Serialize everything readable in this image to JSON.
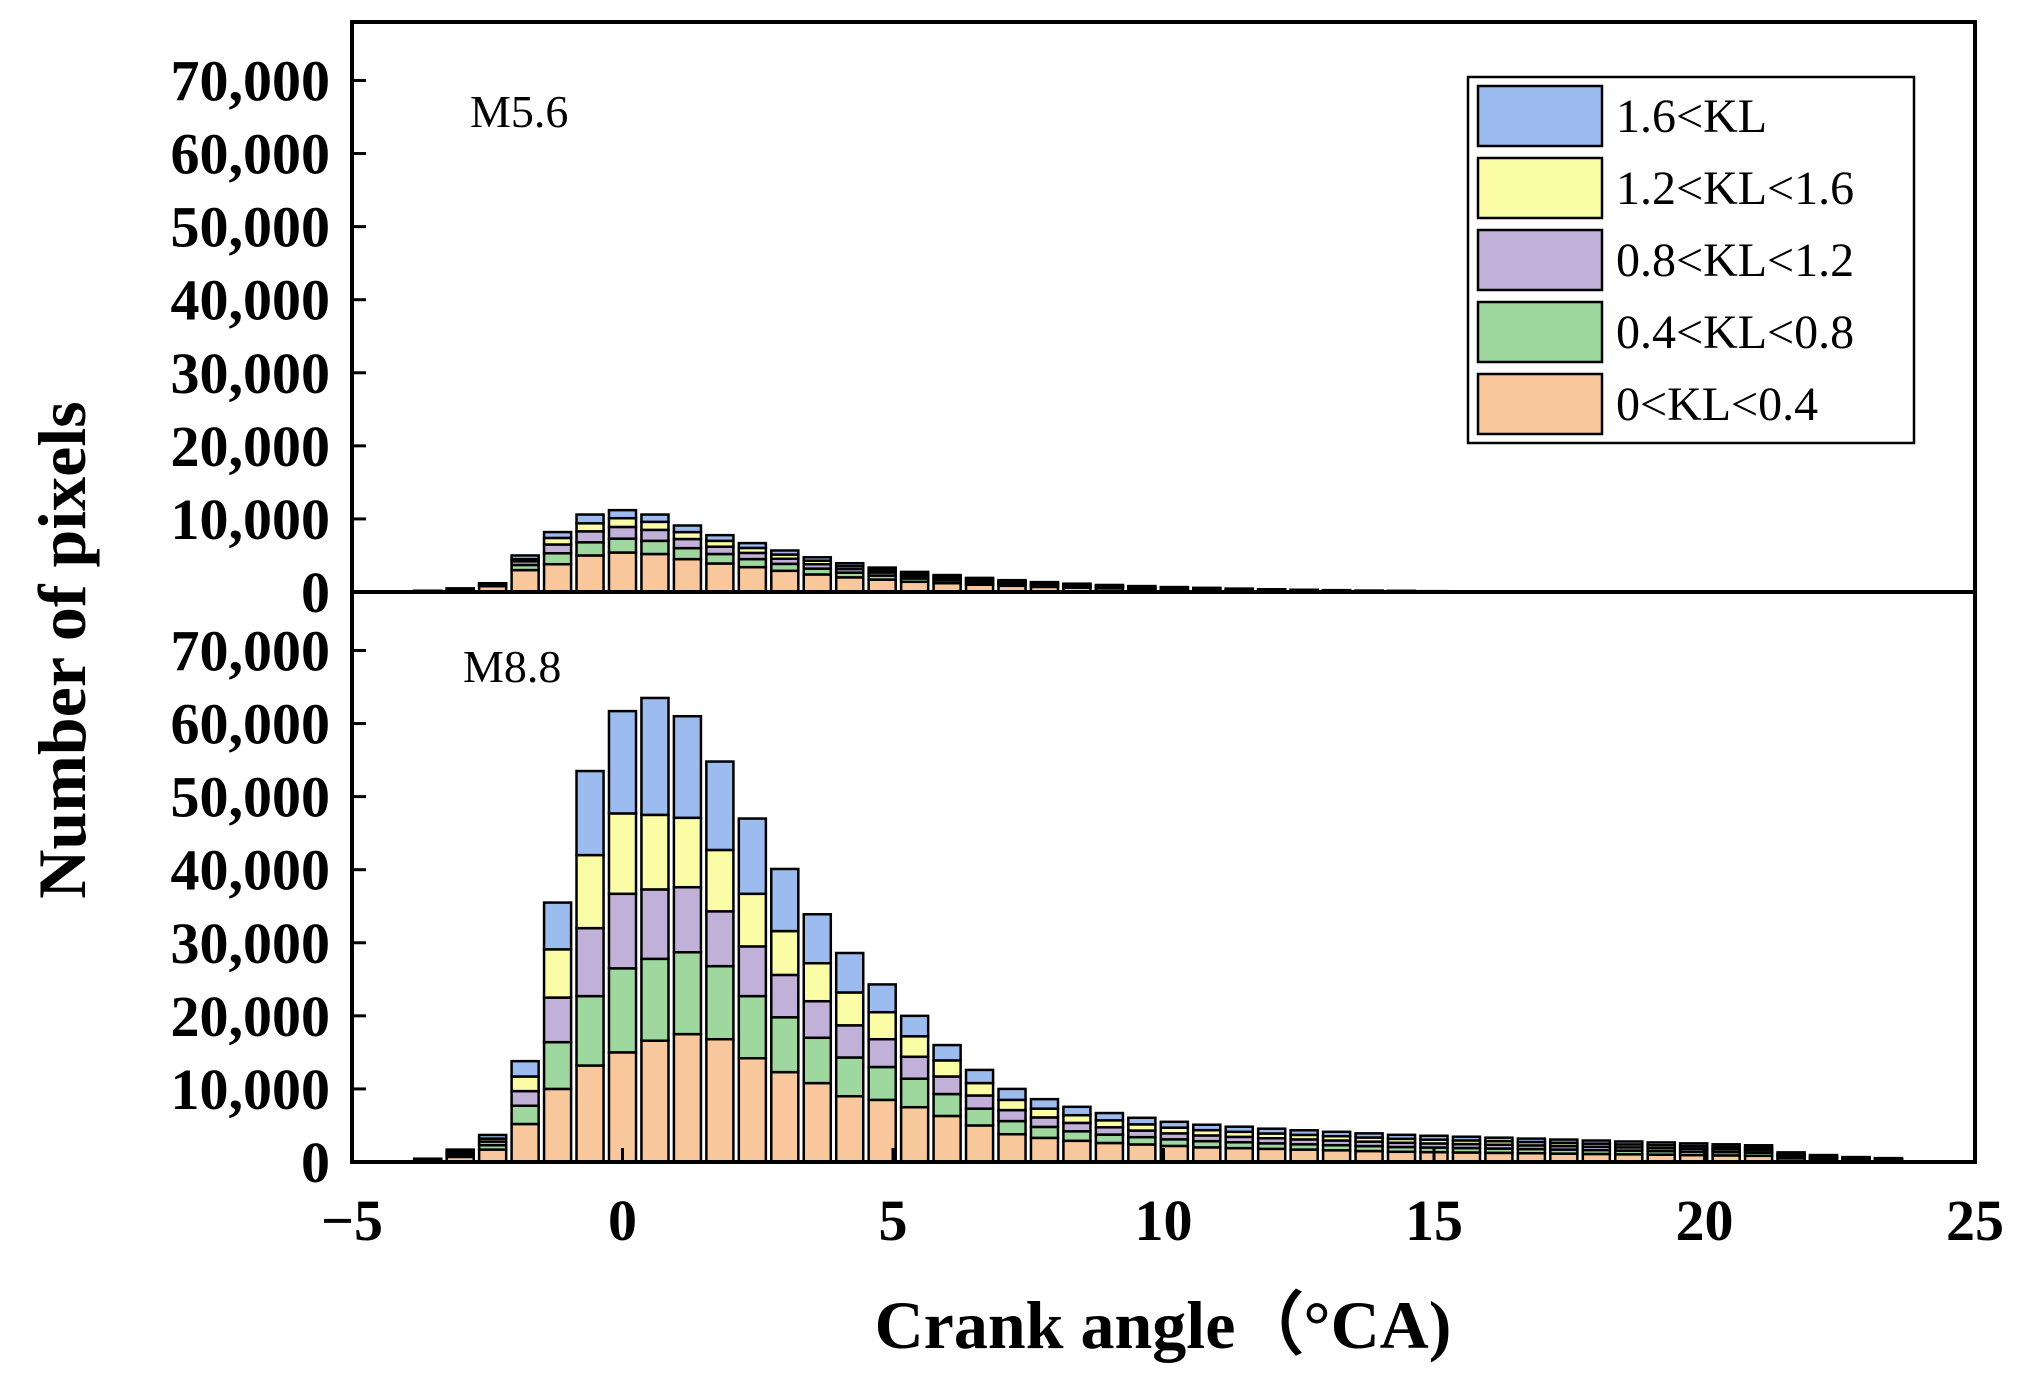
{
  "chart_data": {
    "type": "bar",
    "stacked": true,
    "xlabel": "Crank angle（°CA)",
    "ylabel": "Number of pixels",
    "xlim": [
      -5,
      25
    ],
    "ylim": [
      0,
      78000
    ],
    "xticks": [
      -5,
      0,
      5,
      10,
      15,
      20,
      25
    ],
    "xtick_labels": [
      "−5",
      "0",
      "5",
      "10",
      "15",
      "20",
      "25"
    ],
    "yticks": [
      0,
      10000,
      20000,
      30000,
      40000,
      50000,
      60000,
      70000
    ],
    "ytick_labels": [
      "0",
      "10,000",
      "20,000",
      "30,000",
      "40,000",
      "50,000",
      "60,000",
      "70,000"
    ],
    "bar_width": 0.5,
    "series_names": [
      "0<KL<0.4",
      "0.4<KL<0.8",
      "0.8<KL<1.2",
      "1.2<KL<1.6",
      "1.6<KL"
    ],
    "series_colors": [
      "#f8c79b",
      "#9ed89f",
      "#c1b0d8",
      "#fbfca6",
      "#9cbcf0"
    ],
    "legend_position": "top-right",
    "panels": [
      {
        "label": "M5.6",
        "x": [
          -3.6,
          -3.0,
          -2.4,
          -1.8,
          -1.2,
          -0.6,
          0.0,
          0.6,
          1.2,
          1.8,
          2.4,
          3.0,
          3.6,
          4.2,
          4.8,
          5.4,
          6.0,
          6.6,
          7.2,
          7.8,
          8.4,
          9.0,
          9.6,
          10.2,
          10.8,
          11.4,
          12.0,
          12.6,
          13.2,
          13.8,
          14.4,
          15.0
        ],
        "series": [
          {
            "name": "0<KL<0.4",
            "values": [
              100,
              300,
              800,
              3000,
              3800,
              5000,
              5400,
              5200,
              4500,
              3900,
              3400,
              2900,
              2400,
              2000,
              1700,
              1400,
              1200,
              1000,
              850,
              700,
              600,
              500,
              420,
              350,
              300,
              250,
              200,
              160,
              130,
              100,
              80,
              60
            ]
          },
          {
            "name": "0.4<KL<0.8",
            "values": [
              30,
              80,
              150,
              700,
              1500,
              1800,
              1900,
              1800,
              1500,
              1300,
              1100,
              950,
              800,
              650,
              550,
              450,
              380,
              320,
              260,
              220,
              180,
              150,
              130,
              110,
              90,
              70,
              60,
              50,
              40,
              30,
              25,
              20
            ]
          },
          {
            "name": "0.8<KL<1.2",
            "values": [
              20,
              50,
              100,
              500,
              1200,
              1500,
              1600,
              1500,
              1250,
              1000,
              850,
              700,
              600,
              500,
              420,
              350,
              290,
              240,
              200,
              170,
              140,
              120,
              100,
              85,
              70,
              55,
              45,
              38,
              30,
              25,
              20,
              15
            ]
          },
          {
            "name": "1.2<KL<1.6",
            "values": [
              10,
              30,
              60,
              300,
              900,
              1100,
              1200,
              1100,
              950,
              800,
              680,
              570,
              480,
              400,
              340,
              280,
              230,
              190,
              160,
              130,
              110,
              95,
              80,
              65,
              55,
              45,
              35,
              30,
              25,
              20,
              15,
              10
            ]
          },
          {
            "name": "1.6<KL",
            "values": [
              10,
              40,
              90,
              500,
              800,
              1200,
              1100,
              1000,
              900,
              780,
              660,
              560,
              470,
              390,
              330,
              270,
              220,
              180,
              150,
              130,
              110,
              95,
              80,
              65,
              55,
              45,
              35,
              30,
              25,
              20,
              15,
              10
            ]
          }
        ]
      },
      {
        "label": "M8.8",
        "x": [
          -3.6,
          -3.0,
          -2.4,
          -1.8,
          -1.2,
          -0.6,
          0.0,
          0.6,
          1.2,
          1.8,
          2.4,
          3.0,
          3.6,
          4.2,
          4.8,
          5.4,
          6.0,
          6.6,
          7.2,
          7.8,
          8.4,
          9.0,
          9.6,
          10.2,
          10.8,
          11.4,
          12.0,
          12.6,
          13.2,
          13.8,
          14.4,
          15.0,
          15.6,
          16.2,
          16.8,
          17.4,
          18.0,
          18.6,
          19.2,
          19.8,
          20.4,
          21.0,
          21.6,
          22.2,
          22.8,
          23.4
        ],
        "series": [
          {
            "name": "0<KL<0.4",
            "values": [
              200,
              700,
              1700,
              5200,
              10000,
              13200,
              15000,
              16600,
              17500,
              16800,
              14200,
              12300,
              10800,
              9000,
              8500,
              7500,
              6300,
              5000,
              3800,
              3300,
              2900,
              2600,
              2400,
              2200,
              2000,
              1900,
              1800,
              1700,
              1600,
              1500,
              1400,
              1350,
              1300,
              1250,
              1200,
              1150,
              1100,
              1050,
              1000,
              950,
              900,
              850,
              500,
              350,
              250,
              200
            ]
          },
          {
            "name": "0.4<KL<0.8",
            "values": [
              80,
              300,
              600,
              2500,
              6400,
              9500,
              11500,
              11200,
              11200,
              10000,
              8500,
              7500,
              6200,
              5300,
              4500,
              3900,
              3000,
              2300,
              1800,
              1500,
              1300,
              1150,
              1000,
              900,
              850,
              800,
              750,
              720,
              700,
              680,
              650,
              630,
              610,
              590,
              570,
              550,
              530,
              510,
              490,
              470,
              450,
              430,
              250,
              180,
              130,
              100
            ]
          },
          {
            "name": "0.8<KL<1.2",
            "values": [
              60,
              250,
              500,
              2000,
              6100,
              9300,
              10200,
              9500,
              8900,
              7500,
              6800,
              5800,
              5000,
              4400,
              3800,
              3000,
              2400,
              1800,
              1500,
              1300,
              1150,
              1000,
              900,
              820,
              780,
              740,
              700,
              670,
              640,
              610,
              580,
              560,
              540,
              520,
              500,
              480,
              460,
              440,
              420,
              400,
              380,
              360,
              200,
              150,
              100,
              80
            ]
          },
          {
            "name": "1.2<KL<1.6",
            "values": [
              40,
              200,
              400,
              2000,
              6600,
              10000,
              11000,
              10200,
              9500,
              8400,
              7200,
              6000,
              5200,
              4500,
              3700,
              2800,
              2200,
              1700,
              1400,
              1200,
              1050,
              950,
              850,
              780,
              730,
              690,
              650,
              620,
              590,
              560,
              540,
              520,
              500,
              480,
              460,
              440,
              420,
              400,
              380,
              360,
              340,
              320,
              180,
              130,
              90,
              70
            ]
          },
          {
            "name": "1.6<KL",
            "values": [
              70,
              250,
              500,
              2100,
              6400,
              11500,
              14000,
              16000,
              13900,
              12100,
              10300,
              8500,
              6700,
              5400,
              3800,
              2800,
              2100,
              1800,
              1500,
              1300,
              1150,
              1000,
              900,
              800,
              740,
              700,
              660,
              630,
              600,
              570,
              550,
              530,
              510,
              490,
              470,
              450,
              430,
              410,
              390,
              370,
              350,
              330,
              190,
              140,
              100,
              80
            ]
          }
        ]
      }
    ]
  }
}
